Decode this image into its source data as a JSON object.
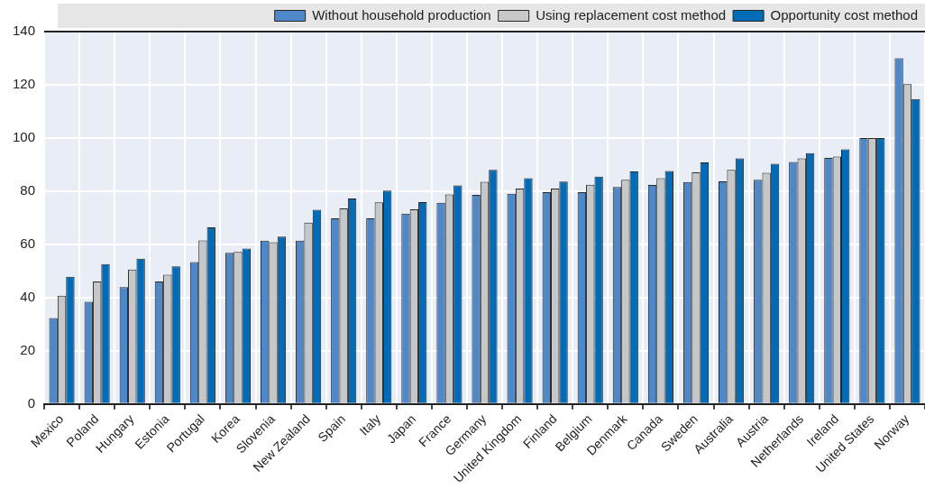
{
  "chart_data": {
    "type": "bar",
    "categories": [
      "Mexico",
      "Poland",
      "Hungary",
      "Estonia",
      "Portugal",
      "Korea",
      "Slovenia",
      "New Zealand",
      "Spain",
      "Italy",
      "Japan",
      "France",
      "Germany",
      "United Kingdom",
      "Finland",
      "Belgium",
      "Denmark",
      "Canada",
      "Sweden",
      "Australia",
      "Austria",
      "Netherlands",
      "Ireland",
      "United States",
      "Norway"
    ],
    "series": [
      {
        "name": "Without household production",
        "color": "#4f88c8",
        "values": [
          32.3,
          38.4,
          43.9,
          46,
          53.3,
          56.8,
          61.4,
          61.4,
          69.8,
          69.8,
          71.6,
          75.6,
          78.6,
          79,
          79.6,
          79.6,
          81.6,
          82.3,
          83.4,
          83.7,
          84.3,
          91,
          92.5,
          100,
          130
        ]
      },
      {
        "name": "Using replacement cost method",
        "color": "#c6c7c9",
        "values": [
          40.7,
          46,
          50.5,
          48.6,
          61.5,
          57.1,
          60.8,
          68.2,
          73.5,
          75.8,
          73.2,
          78.8,
          83.5,
          81,
          81,
          82.4,
          84.3,
          84.9,
          87.1,
          88,
          86.9,
          92.3,
          93,
          100,
          120.2
        ]
      },
      {
        "name": "Opportunity cost method",
        "color": "#006bb6",
        "values": [
          47.8,
          52.6,
          54.6,
          51.7,
          66.4,
          58.4,
          62.9,
          73,
          77.2,
          80.2,
          75.9,
          82.2,
          88,
          84.9,
          83.6,
          85.5,
          87.4,
          87.6,
          90.8,
          92.3,
          90.3,
          94.3,
          95.7,
          100,
          114.6
        ]
      }
    ],
    "ylim": [
      0,
      140
    ],
    "yticks": [
      0,
      20,
      40,
      60,
      80,
      100,
      120,
      140
    ],
    "grid": true,
    "legend": "top"
  }
}
